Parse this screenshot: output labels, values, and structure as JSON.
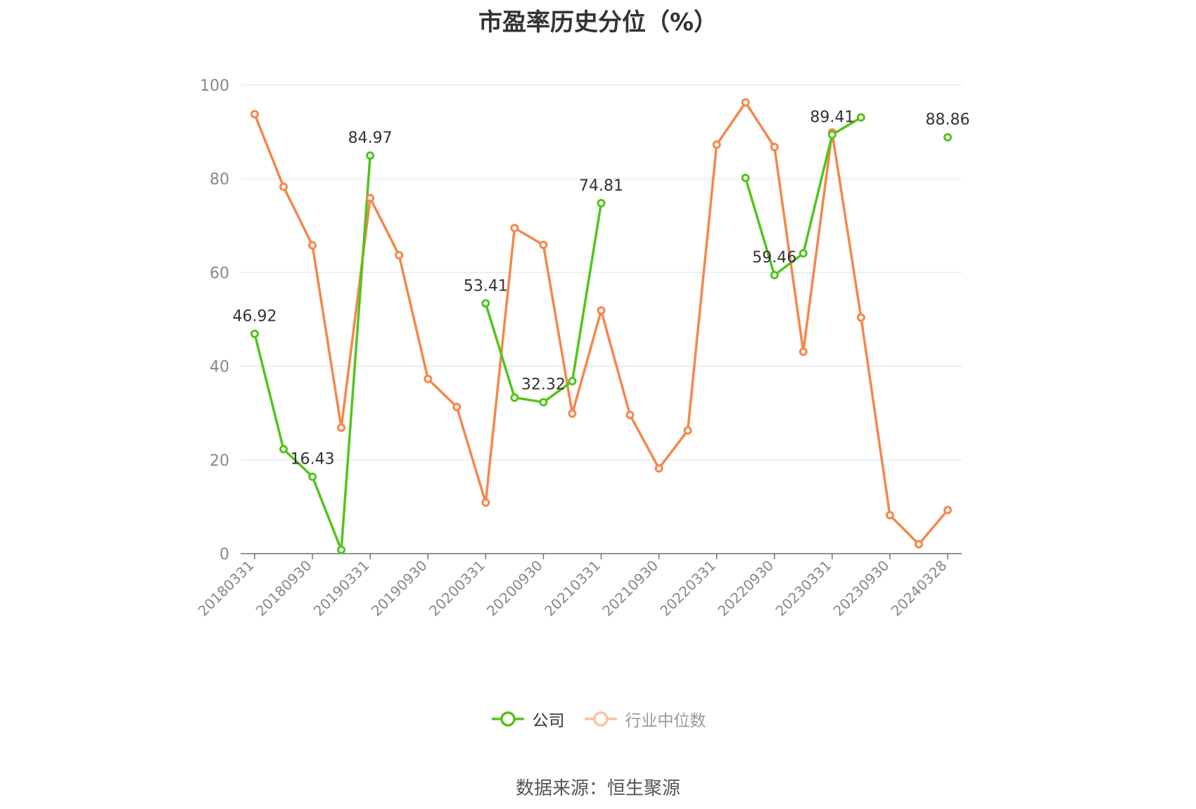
{
  "page": {
    "source_note": "数据来源：恒生聚源"
  },
  "chart_data": {
    "type": "line",
    "title": "市盈率历史分位（%）",
    "xlabel": "",
    "ylabel": "",
    "ylim": [
      0,
      100
    ],
    "yticks": [
      0,
      20,
      40,
      60,
      80,
      100
    ],
    "grid": true,
    "legend_position": "bottom",
    "x": [
      "20180331",
      "20180630",
      "20180930",
      "20181231",
      "20190331",
      "20190630",
      "20190930",
      "20191231",
      "20200331",
      "20200630",
      "20200930",
      "20201231",
      "20210331",
      "20210630",
      "20210930",
      "20211231",
      "20220331",
      "20220630",
      "20220930",
      "20221231",
      "20230331",
      "20230630",
      "20230930",
      "20231231",
      "20240328"
    ],
    "x_tick_labels": [
      "20180331",
      "20180930",
      "20190331",
      "20190930",
      "20200331",
      "20200930",
      "20210331",
      "20210930",
      "20220331",
      "20220930",
      "20230331",
      "20230930",
      "20240328"
    ],
    "series": [
      {
        "name": "公司",
        "color": "#52c41a",
        "values": [
          46.92,
          22.3,
          16.43,
          0.8,
          84.97,
          null,
          null,
          null,
          53.41,
          33.3,
          32.32,
          36.8,
          74.81,
          null,
          null,
          null,
          null,
          80.2,
          59.46,
          64.1,
          89.41,
          93.1,
          null,
          null,
          88.86
        ],
        "labels": {
          "0": "46.92",
          "2": "16.43",
          "4": "84.97",
          "8": "53.41",
          "10": "32.32",
          "12": "74.81",
          "18": "59.46",
          "20": "89.41",
          "24": "88.86"
        }
      },
      {
        "name": "行业中位数",
        "color": "#f4874b",
        "values": [
          93.8,
          78.3,
          65.8,
          26.9,
          75.9,
          63.7,
          37.3,
          31.3,
          10.9,
          69.5,
          65.9,
          29.9,
          51.9,
          29.6,
          18.2,
          26.3,
          87.3,
          96.3,
          86.8,
          43.1,
          89.9,
          50.4,
          8.2,
          2.0,
          9.3
        ]
      }
    ]
  }
}
